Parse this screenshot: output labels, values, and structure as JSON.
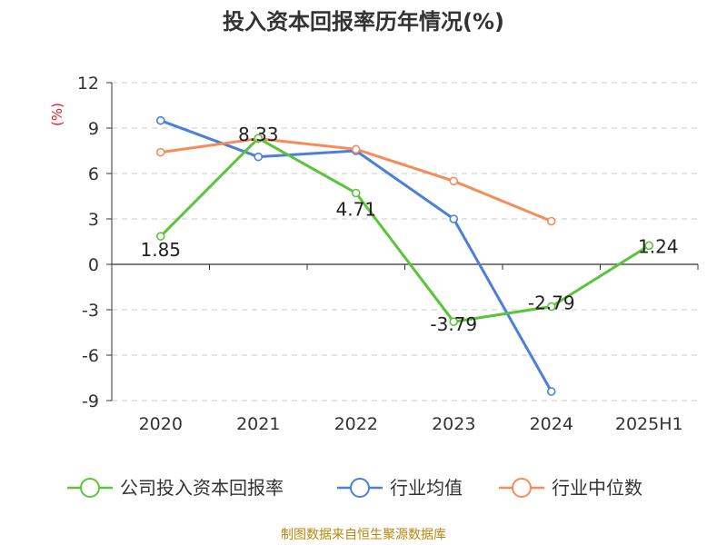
{
  "title": "投入资本回报率历年情况(%)",
  "footer": "制图数据来自恒生聚源数据库",
  "colors": {
    "company": "#5cc43a",
    "industry_avg": "#4a7fdc",
    "industry_median": "#f58c5a",
    "axis_unit": "#e02020"
  },
  "chart_data": {
    "type": "line",
    "title": "投入资本回报率历年情况(%)",
    "ylabel": "(%)",
    "xlabel": "",
    "categories": [
      "2020",
      "2021",
      "2022",
      "2023",
      "2024",
      "2025H1"
    ],
    "ylim": [
      -9,
      12
    ],
    "yticks": [
      12,
      9,
      6,
      3,
      0,
      -3,
      -6,
      -9
    ],
    "ytick_labels": [
      "12",
      "9",
      "6",
      "3",
      "0",
      "-3",
      "-6",
      "-9"
    ],
    "grid": true,
    "legend_position": "bottom",
    "series": [
      {
        "name": "公司投入资本回报率",
        "values": [
          1.85,
          8.33,
          4.71,
          -3.79,
          -2.79,
          1.24
        ],
        "labels": [
          "1.85",
          "8.33",
          "4.71",
          "-3.79",
          "-2.79",
          "1.24"
        ]
      },
      {
        "name": "行业均值",
        "values": [
          9.5,
          7.1,
          7.5,
          3.0,
          -8.4,
          null
        ]
      },
      {
        "name": "行业中位数",
        "values": [
          7.4,
          8.3,
          7.6,
          5.5,
          2.85,
          null
        ]
      }
    ]
  }
}
